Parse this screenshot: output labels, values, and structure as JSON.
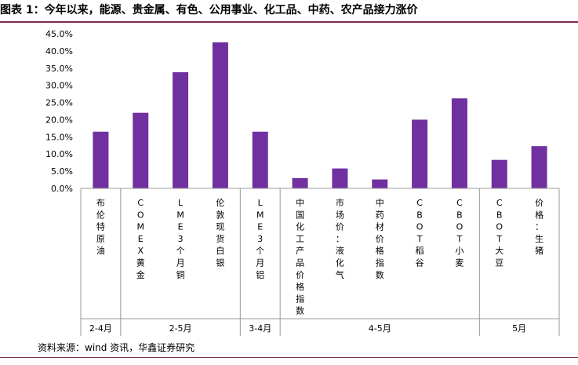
{
  "title": "图表 1：今年以来，能源、贵金属、有色、公用事业、化工品、中药、农产品接力涨价",
  "source": "资料来源：wind 资讯，华鑫证券研究",
  "chart_data": {
    "type": "bar",
    "title": "",
    "xlabel": "",
    "ylabel": "",
    "ylim": [
      0,
      45
    ],
    "y_ticks": [
      "0.0%",
      "5.0%",
      "10.0%",
      "15.0%",
      "20.0%",
      "25.0%",
      "30.0%",
      "35.0%",
      "40.0%",
      "45.0%"
    ],
    "grid": false,
    "legend": "none",
    "bar_color": "#7030a0",
    "categories": [
      "布伦特原油",
      "COMEX黄金",
      "LME3个月铜",
      "伦敦现货白银",
      "LME3个月铝",
      "中国化工产品价格指数",
      "市场价：液化气",
      "中药材价格指数",
      "CBOT稻谷",
      "CBOT小麦",
      "CBOT大豆",
      "价格：生猪"
    ],
    "values": [
      16.5,
      22.0,
      33.8,
      42.5,
      16.5,
      3.0,
      5.8,
      2.6,
      20.0,
      26.2,
      8.3,
      12.3
    ],
    "groups": [
      {
        "label": "2-4月",
        "start": 0,
        "end": 0
      },
      {
        "label": "2-5月",
        "start": 1,
        "end": 3
      },
      {
        "label": "3-4月",
        "start": 4,
        "end": 4
      },
      {
        "label": "4-5月",
        "start": 5,
        "end": 9
      },
      {
        "label": "5月",
        "start": 10,
        "end": 11
      }
    ]
  }
}
